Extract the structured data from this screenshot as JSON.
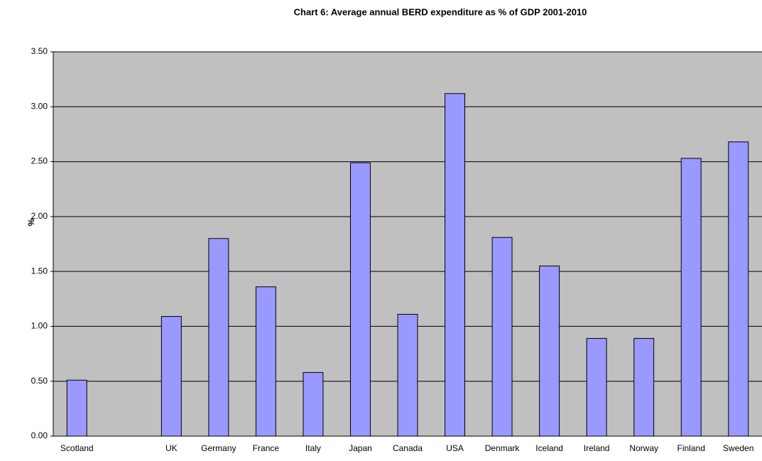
{
  "chart_data": {
    "type": "bar",
    "title": "Chart 6: Average annual BERD expenditure as % of GDP 2001-2010",
    "y_label": "%",
    "categories": [
      "Scotland",
      null,
      "UK",
      "Germany",
      "France",
      "Italy",
      "Japan",
      "Canada",
      "USA",
      "Denmark",
      "Iceland",
      "Ireland",
      "Norway",
      "Finland",
      "Sweden"
    ],
    "values": [
      0.51,
      null,
      1.09,
      1.8,
      1.36,
      0.58,
      2.49,
      1.11,
      3.12,
      1.81,
      1.55,
      0.89,
      0.89,
      2.53,
      2.68
    ],
    "color": "#9999ff",
    "ylim": [
      0,
      3.5
    ],
    "yticks": [
      {
        "value": 0,
        "label": "0.00"
      },
      {
        "value": 0.5,
        "label": "0.50"
      },
      {
        "value": 1,
        "label": "1.00"
      },
      {
        "value": 1.5,
        "label": "1.50"
      },
      {
        "value": 2,
        "label": "2.00"
      },
      {
        "value": 2.5,
        "label": "2.50"
      },
      {
        "value": 3,
        "label": "3.00"
      },
      {
        "value": 3.5,
        "label": "3.50"
      }
    ],
    "grid": true
  }
}
